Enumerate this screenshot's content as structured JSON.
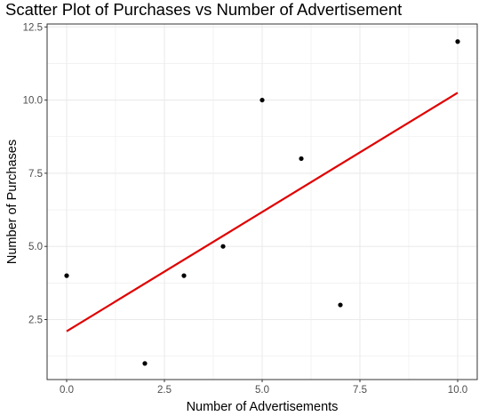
{
  "chart_data": {
    "type": "scatter",
    "title": "Scatter Plot of Purchases vs Number of Advertisement",
    "xlabel": "Number of Advertisements",
    "ylabel": "Number of Purchases",
    "xlim": [
      -0.5,
      10.5
    ],
    "ylim": [
      0.45,
      12.6
    ],
    "x_ticks": [
      0,
      2.5,
      5,
      7.5,
      10
    ],
    "x_tick_labels": [
      "0.0",
      "2.5",
      "5.0",
      "7.5",
      "10.0"
    ],
    "y_ticks": [
      2.5,
      5,
      7.5,
      10,
      12.5
    ],
    "y_tick_labels": [
      "2.5",
      "5.0",
      "7.5",
      "10.0",
      "12.5"
    ],
    "grid": true,
    "points": [
      {
        "x": 0,
        "y": 4
      },
      {
        "x": 2,
        "y": 1
      },
      {
        "x": 3,
        "y": 4
      },
      {
        "x": 4,
        "y": 5
      },
      {
        "x": 5,
        "y": 10
      },
      {
        "x": 6,
        "y": 8
      },
      {
        "x": 7,
        "y": 3
      },
      {
        "x": 10,
        "y": 12
      }
    ],
    "fit_line": {
      "x": [
        0,
        10
      ],
      "y": [
        2.1,
        10.25
      ]
    },
    "colors": {
      "points": "#000000",
      "fit_line": "#e00000",
      "grid": "#ebebeb",
      "panel_border": "#333333"
    }
  }
}
